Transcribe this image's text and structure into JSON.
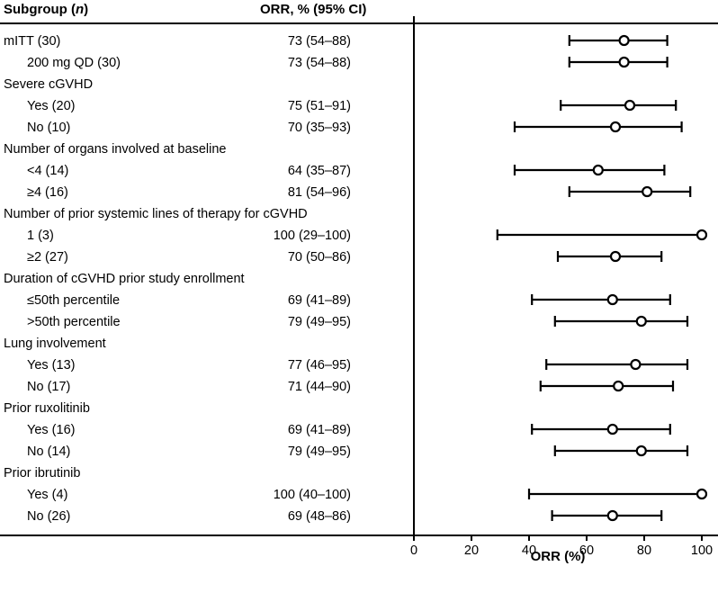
{
  "chart_data": {
    "type": "forest",
    "header": {
      "subgroup_text": "Subgroup (",
      "subgroup_n": "n",
      "subgroup_close": ")",
      "orr": "ORR, % (95% CI)"
    },
    "xlabel": "ORR (%)",
    "xlim": [
      0,
      100
    ],
    "xticks": [
      0,
      20,
      40,
      60,
      80,
      100
    ],
    "rows": [
      {
        "label": "mITT (30)",
        "indent": false,
        "value_text": "73 (54–88)",
        "est": 73,
        "lo": 54,
        "hi": 88
      },
      {
        "label": "200 mg QD (30)",
        "indent": true,
        "value_text": "73 (54–88)",
        "est": 73,
        "lo": 54,
        "hi": 88
      },
      {
        "label": "Severe cGVHD",
        "indent": false,
        "category": true
      },
      {
        "label": "Yes (20)",
        "indent": true,
        "value_text": "75 (51–91)",
        "est": 75,
        "lo": 51,
        "hi": 91
      },
      {
        "label": "No (10)",
        "indent": true,
        "value_text": "70 (35–93)",
        "est": 70,
        "lo": 35,
        "hi": 93
      },
      {
        "label": "Number of organs involved at baseline",
        "indent": false,
        "category": true
      },
      {
        "label": "<4 (14)",
        "indent": true,
        "value_text": "64 (35–87)",
        "est": 64,
        "lo": 35,
        "hi": 87
      },
      {
        "label": "≥4 (16)",
        "indent": true,
        "value_text": "81 (54–96)",
        "est": 81,
        "lo": 54,
        "hi": 96
      },
      {
        "label": "Number of prior systemic lines of therapy for cGVHD",
        "indent": false,
        "category": true
      },
      {
        "label": "1 (3)",
        "indent": true,
        "value_text": "100 (29–100)",
        "est": 100,
        "lo": 29,
        "hi": 100
      },
      {
        "label": "≥2 (27)",
        "indent": true,
        "value_text": "70 (50–86)",
        "est": 70,
        "lo": 50,
        "hi": 86
      },
      {
        "label": "Duration of cGVHD prior study enrollment",
        "indent": false,
        "category": true
      },
      {
        "label": "≤50th percentile",
        "indent": true,
        "value_text": "69 (41–89)",
        "est": 69,
        "lo": 41,
        "hi": 89
      },
      {
        "label": ">50th percentile",
        "indent": true,
        "value_text": "79 (49–95)",
        "est": 79,
        "lo": 49,
        "hi": 95
      },
      {
        "label": "Lung involvement",
        "indent": false,
        "category": true
      },
      {
        "label": "Yes (13)",
        "indent": true,
        "value_text": "77 (46–95)",
        "est": 77,
        "lo": 46,
        "hi": 95
      },
      {
        "label": "No (17)",
        "indent": true,
        "value_text": "71 (44–90)",
        "est": 71,
        "lo": 44,
        "hi": 90
      },
      {
        "label": "Prior ruxolitinib",
        "indent": false,
        "category": true
      },
      {
        "label": "Yes (16)",
        "indent": true,
        "value_text": "69 (41–89)",
        "est": 69,
        "lo": 41,
        "hi": 89
      },
      {
        "label": "No (14)",
        "indent": true,
        "value_text": "79 (49–95)",
        "est": 79,
        "lo": 49,
        "hi": 95
      },
      {
        "label": "Prior ibrutinib",
        "indent": false,
        "category": true
      },
      {
        "label": "Yes (4)",
        "indent": true,
        "value_text": "100 (40–100)",
        "est": 100,
        "lo": 40,
        "hi": 100
      },
      {
        "label": "No (26)",
        "indent": true,
        "value_text": "69 (48–86)",
        "est": 69,
        "lo": 48,
        "hi": 86
      }
    ]
  }
}
